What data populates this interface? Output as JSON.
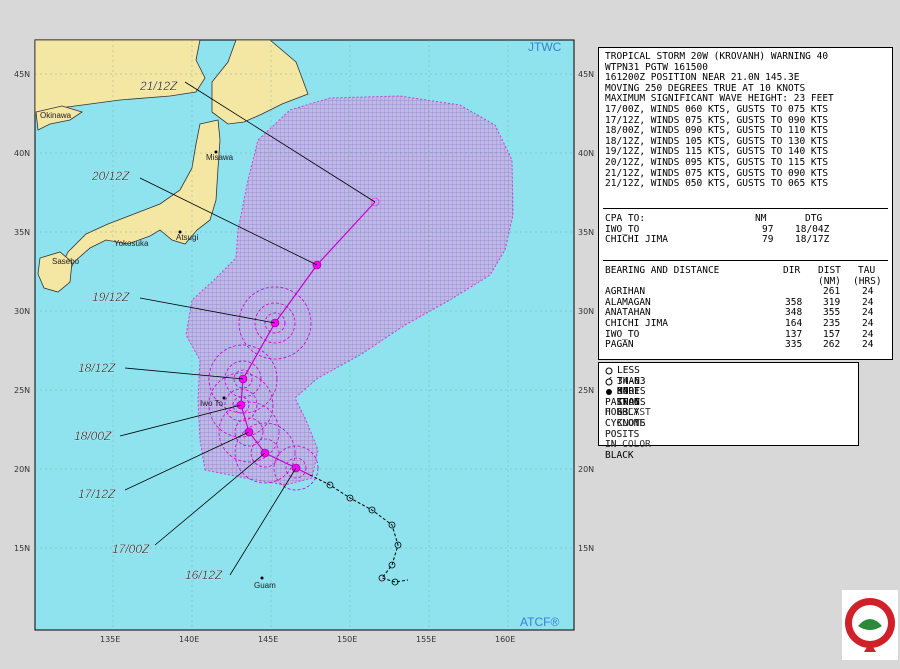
{
  "map": {
    "agency_top": "JTWC",
    "agency_bottom": "ATCF®",
    "lat_labels": [
      "45N",
      "40N",
      "35N",
      "30N",
      "25N",
      "20N",
      "15N"
    ],
    "lon_labels": [
      "135E",
      "140E",
      "145E",
      "150E",
      "155E",
      "160E"
    ],
    "place_names": [
      "Misawa",
      "Atsugi",
      "Iwo To",
      "Guam",
      "Yokosuka",
      "Sasebo",
      "Okinawa"
    ],
    "time_labels": [
      "21/12Z",
      "20/12Z",
      "19/12Z",
      "18/12Z",
      "18/00Z",
      "17/12Z",
      "17/00Z",
      "16/12Z"
    ],
    "colors": {
      "ocean": "#8ee3ee",
      "land": "#f4e7a4",
      "danger": "#c0b9e8",
      "track": "#cc00cc",
      "past": "#000000"
    }
  },
  "warning": {
    "lines": [
      "TROPICAL STORM 20W (KROVANH) WARNING 40",
      "WTPN31 PGTW 161500",
      "161200Z POSITION NEAR 21.0N 145.3E",
      "MOVING 250 DEGREES TRUE AT 10 KNOTS",
      "MAXIMUM SIGNIFICANT WAVE HEIGHT: 23 FEET",
      "17/00Z, WINDS 060 KTS, GUSTS TO 075 KTS",
      "17/12Z, WINDS 075 KTS, GUSTS TO 090 KTS",
      "18/00Z, WINDS 090 KTS, GUSTS TO 110 KTS",
      "18/12Z, WINDS 105 KTS, GUSTS TO 130 KTS",
      "19/12Z, WINDS 115 KTS, GUSTS TO 140 KTS",
      "20/12Z, WINDS 095 KTS, GUSTS TO 115 KTS",
      "21/12Z, WINDS 075 KTS, GUSTS TO 090 KTS",
      "21/12Z, WINDS 050 KTS, GUSTS TO 065 KTS"
    ],
    "cpa_header": {
      "label": "CPA TO:",
      "nm": "NM",
      "dtg": "DTG"
    },
    "cpa": [
      {
        "place": "IWO_TO",
        "nm": "97",
        "dtg": "18/04Z"
      },
      {
        "place": "CHICHI JIMA",
        "nm": "79",
        "dtg": "18/17Z"
      }
    ],
    "bearing_header": {
      "label": "BEARING AND DISTANCE",
      "dir": "DIR",
      "dist": "DIST",
      "tau": "TAU",
      "dist2": "(NM)",
      "tau2": "(HRS)"
    },
    "bearing": [
      {
        "place": "AGRIHAN",
        "dir": "",
        "dist": "261",
        "tau": "24"
      },
      {
        "place": "ALAMAGAN",
        "dir": "358",
        "dist": "319",
        "tau": "24"
      },
      {
        "place": "ANATAHAN",
        "dir": "348",
        "dist": "355",
        "tau": "24"
      },
      {
        "place": "CHICHI JIMA",
        "dir": "164",
        "dist": "235",
        "tau": "24"
      },
      {
        "place": "IWO_TO",
        "dir": "137",
        "dist": "157",
        "tau": "24"
      },
      {
        "place": "PAGAN",
        "dir": "335",
        "dist": "262",
        "tau": "24"
      }
    ]
  },
  "legend": {
    "lines": [
      "LESS THAN 34 KNOTS",
      "34-63 KNOTS",
      "MORE THAN 63 KNOTS",
      "PAST 6 HOURLY CYCLONE POSITS IN BLACK",
      "FORECAST CYCLONE POSITS IN COLOR"
    ]
  }
}
